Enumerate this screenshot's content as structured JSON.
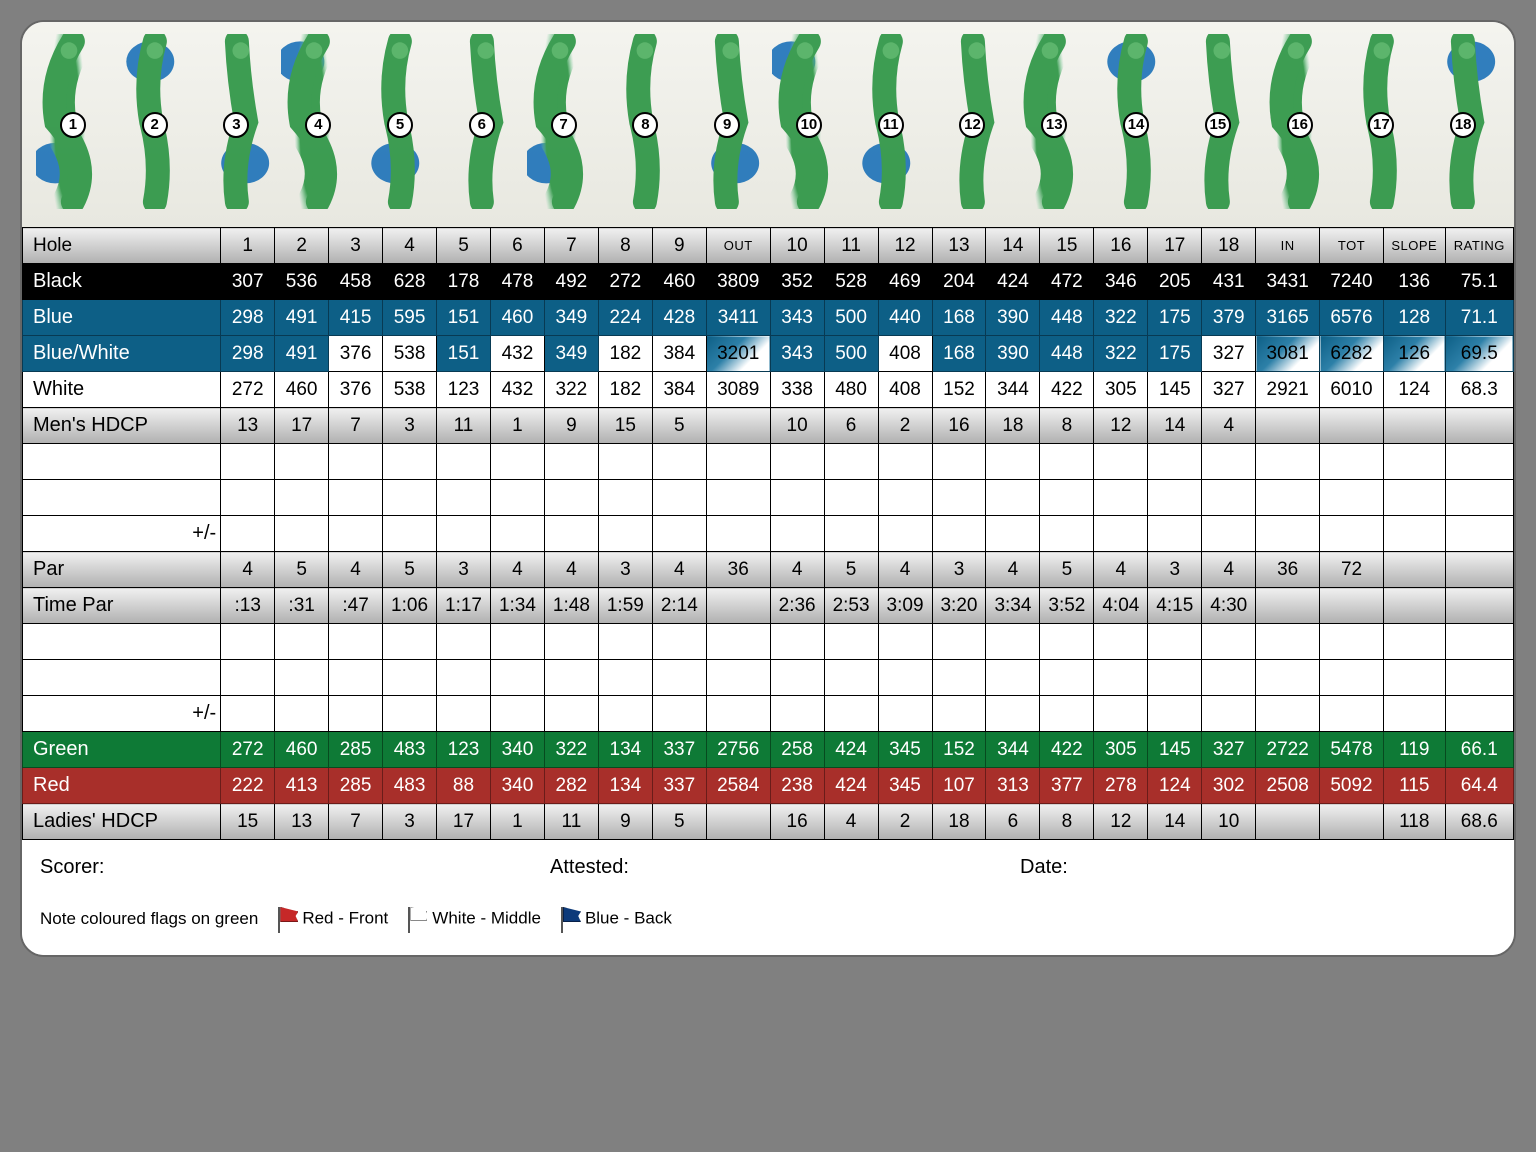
{
  "holes": [
    1,
    2,
    3,
    4,
    5,
    6,
    7,
    8,
    9,
    10,
    11,
    12,
    13,
    14,
    15,
    16,
    17,
    18
  ],
  "hole_water": [
    true,
    true,
    true,
    true,
    true,
    false,
    true,
    false,
    true,
    true,
    true,
    false,
    false,
    true,
    false,
    false,
    false,
    true
  ],
  "header": {
    "hole": "Hole",
    "out": "OUT",
    "in": "IN",
    "tot": "TOT",
    "slope": "SLOPE",
    "rating": "RATING"
  },
  "rows": {
    "black": {
      "label": "Black",
      "v": [
        "307",
        "536",
        "458",
        "628",
        "178",
        "478",
        "492",
        "272",
        "460",
        "3809",
        "352",
        "528",
        "469",
        "204",
        "424",
        "472",
        "346",
        "205",
        "431",
        "3431",
        "7240",
        "136",
        "75.1"
      ]
    },
    "blue": {
      "label": "Blue",
      "v": [
        "298",
        "491",
        "415",
        "595",
        "151",
        "460",
        "349",
        "224",
        "428",
        "3411",
        "343",
        "500",
        "440",
        "168",
        "390",
        "448",
        "322",
        "175",
        "379",
        "3165",
        "6576",
        "128",
        "71.1"
      ]
    },
    "bluewhite": {
      "label": "Blue/White",
      "v": [
        "298",
        "491",
        "376",
        "538",
        "151",
        "432",
        "349",
        "182",
        "384",
        "3201",
        "343",
        "500",
        "408",
        "168",
        "390",
        "448",
        "322",
        "175",
        "327",
        "3081",
        "6282",
        "126",
        "69.5"
      ],
      "mask": [
        "b",
        "b",
        "w",
        "w",
        "b",
        "w",
        "b",
        "w",
        "w",
        "bw",
        "b",
        "b",
        "w",
        "b",
        "b",
        "b",
        "b",
        "b",
        "w",
        "bw",
        "bw",
        "bw",
        "bw"
      ]
    },
    "white": {
      "label": "White",
      "v": [
        "272",
        "460",
        "376",
        "538",
        "123",
        "432",
        "322",
        "182",
        "384",
        "3089",
        "338",
        "480",
        "408",
        "152",
        "344",
        "422",
        "305",
        "145",
        "327",
        "2921",
        "6010",
        "124",
        "68.3"
      ]
    },
    "menshdcp": {
      "label": "Men's HDCP",
      "v": [
        "13",
        "17",
        "7",
        "3",
        "11",
        "1",
        "9",
        "15",
        "5",
        "",
        "10",
        "6",
        "2",
        "16",
        "18",
        "8",
        "12",
        "14",
        "4",
        "",
        "",
        "",
        ""
      ]
    },
    "empty1": {
      "label": "",
      "v": [
        "",
        "",
        "",
        "",
        "",
        "",
        "",
        "",
        "",
        "",
        "",
        "",
        "",
        "",
        "",
        "",
        "",
        "",
        "",
        "",
        "",
        "",
        ""
      ]
    },
    "empty2": {
      "label": "",
      "v": [
        "",
        "",
        "",
        "",
        "",
        "",
        "",
        "",
        "",
        "",
        "",
        "",
        "",
        "",
        "",
        "",
        "",
        "",
        "",
        "",
        "",
        "",
        ""
      ]
    },
    "pm1": {
      "label": "+/-",
      "v": [
        "",
        "",
        "",
        "",
        "",
        "",
        "",
        "",
        "",
        "",
        "",
        "",
        "",
        "",
        "",
        "",
        "",
        "",
        "",
        "",
        "",
        "",
        ""
      ]
    },
    "par": {
      "label": "Par",
      "v": [
        "4",
        "5",
        "4",
        "5",
        "3",
        "4",
        "4",
        "3",
        "4",
        "36",
        "4",
        "5",
        "4",
        "3",
        "4",
        "5",
        "4",
        "3",
        "4",
        "36",
        "72",
        "",
        ""
      ]
    },
    "timepar": {
      "label": "Time Par",
      "v": [
        ":13",
        ":31",
        ":47",
        "1:06",
        "1:17",
        "1:34",
        "1:48",
        "1:59",
        "2:14",
        "",
        "2:36",
        "2:53",
        "3:09",
        "3:20",
        "3:34",
        "3:52",
        "4:04",
        "4:15",
        "4:30",
        "",
        "",
        "",
        ""
      ]
    },
    "empty3": {
      "label": "",
      "v": [
        "",
        "",
        "",
        "",
        "",
        "",
        "",
        "",
        "",
        "",
        "",
        "",
        "",
        "",
        "",
        "",
        "",
        "",
        "",
        "",
        "",
        "",
        ""
      ]
    },
    "empty4": {
      "label": "",
      "v": [
        "",
        "",
        "",
        "",
        "",
        "",
        "",
        "",
        "",
        "",
        "",
        "",
        "",
        "",
        "",
        "",
        "",
        "",
        "",
        "",
        "",
        "",
        ""
      ]
    },
    "pm2": {
      "label": "+/-",
      "v": [
        "",
        "",
        "",
        "",
        "",
        "",
        "",
        "",
        "",
        "",
        "",
        "",
        "",
        "",
        "",
        "",
        "",
        "",
        "",
        "",
        "",
        "",
        ""
      ]
    },
    "green": {
      "label": "Green",
      "v": [
        "272",
        "460",
        "285",
        "483",
        "123",
        "340",
        "322",
        "134",
        "337",
        "2756",
        "258",
        "424",
        "345",
        "152",
        "344",
        "422",
        "305",
        "145",
        "327",
        "2722",
        "5478",
        "119",
        "66.1"
      ]
    },
    "red": {
      "label": "Red",
      "v": [
        "222",
        "413",
        "285",
        "483",
        "88",
        "340",
        "282",
        "134",
        "337",
        "2584",
        "238",
        "424",
        "345",
        "107",
        "313",
        "377",
        "278",
        "124",
        "302",
        "2508",
        "5092",
        "115",
        "64.4"
      ]
    },
    "ladieshdcp": {
      "label": "Ladies' HDCP",
      "v": [
        "15",
        "13",
        "7",
        "3",
        "17",
        "1",
        "11",
        "9",
        "5",
        "",
        "16",
        "4",
        "2",
        "18",
        "6",
        "8",
        "12",
        "14",
        "10",
        "",
        "",
        "118",
        "68.6"
      ]
    }
  },
  "footer": {
    "scorer": "Scorer:",
    "attested": "Attested:",
    "date": "Date:",
    "note": "Note coloured flags on green",
    "red": "Red - Front",
    "white": "White - Middle",
    "blue": "Blue - Back"
  },
  "colors": {
    "bg": "#808080",
    "black": "#000000",
    "blue": "#0d5f86",
    "green": "#0e7a36",
    "red": "#a82f2a",
    "fairway": "#2a9442",
    "fairway_glow": "#6fcf97",
    "water": "#1c72b8"
  }
}
